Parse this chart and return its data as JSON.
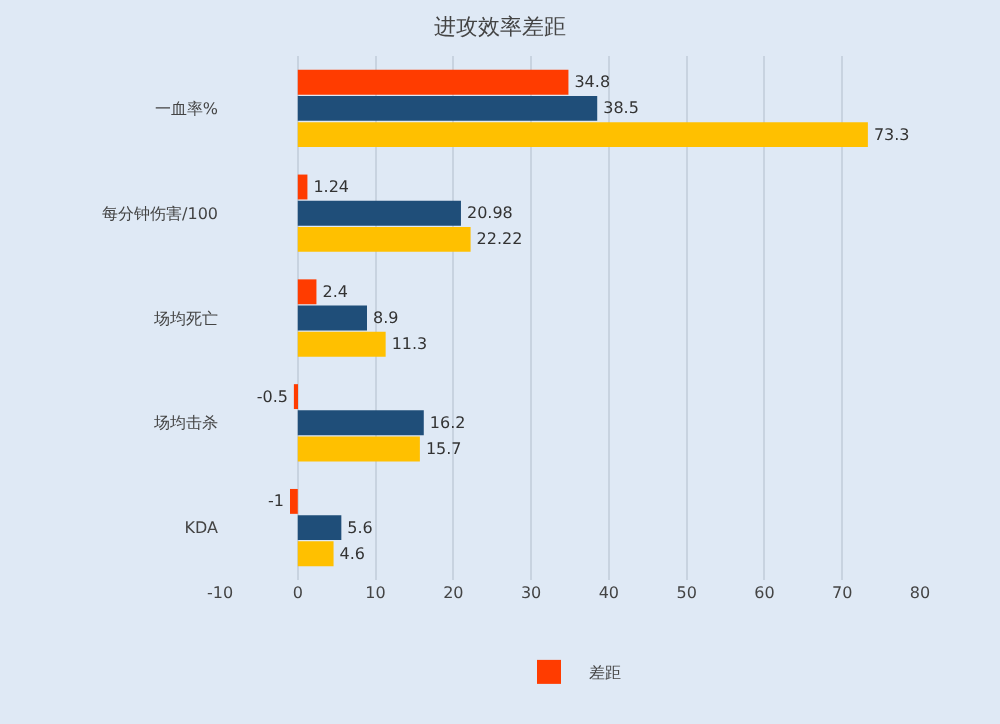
{
  "chart_data": {
    "type": "bar",
    "title": "进攻效率差距",
    "orientation": "horizontal",
    "categories": [
      "一血率%",
      "每分钟伤害/100",
      "场均死亡",
      "场均击杀",
      "KDA"
    ],
    "series": [
      {
        "name": "差距",
        "color": "#ff3c00",
        "values": [
          34.8,
          1.24,
          2.4,
          -0.5,
          -1
        ]
      },
      {
        "color": "#1f4e79",
        "values": [
          38.5,
          20.98,
          8.9,
          16.2,
          5.6
        ]
      },
      {
        "color": "#ffc000",
        "values": [
          73.3,
          22.22,
          11.3,
          15.7,
          4.6
        ]
      }
    ],
    "xlim": [
      -10,
      80
    ],
    "xticks": [
      -10,
      0,
      10,
      20,
      30,
      40,
      50,
      60,
      70,
      80
    ],
    "grid": "x",
    "legend": "bottom",
    "data_labels": true
  }
}
